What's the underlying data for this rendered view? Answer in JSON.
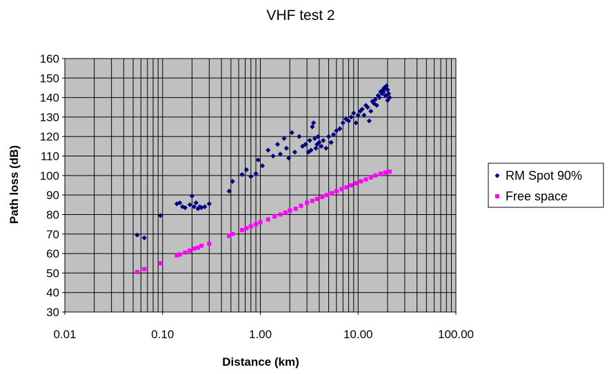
{
  "chart_data": {
    "type": "scatter",
    "title": "VHF test 2",
    "xlabel": "Distance (km)",
    "ylabel": "Path loss (dB)",
    "x_scale": "log",
    "xlim": [
      0.01,
      100
    ],
    "ylim": [
      30,
      160
    ],
    "x_tick_values": [
      0.01,
      0.1,
      1,
      10,
      100
    ],
    "x_tick_labels": [
      "0.01",
      "0.10",
      "1.00",
      "10.00",
      "100.00"
    ],
    "y_ticks": [
      30,
      40,
      50,
      60,
      70,
      80,
      90,
      100,
      110,
      120,
      130,
      140,
      150,
      160
    ],
    "grid": true,
    "plot_background": "#c0c0c0",
    "legend_position": "right",
    "series": [
      {
        "name": "RM Spot 90%",
        "color": "#000080",
        "marker": "diamond",
        "points": [
          [
            0.055,
            69.5
          ],
          [
            0.065,
            68
          ],
          [
            0.095,
            79.5
          ],
          [
            0.14,
            85.5
          ],
          [
            0.15,
            86
          ],
          [
            0.16,
            84
          ],
          [
            0.17,
            83.5
          ],
          [
            0.19,
            85
          ],
          [
            0.2,
            89.5
          ],
          [
            0.21,
            84
          ],
          [
            0.22,
            86
          ],
          [
            0.23,
            83
          ],
          [
            0.24,
            84
          ],
          [
            0.25,
            83.5
          ],
          [
            0.27,
            84
          ],
          [
            0.3,
            85.5
          ],
          [
            0.48,
            92
          ],
          [
            0.52,
            97
          ],
          [
            0.65,
            100.5
          ],
          [
            0.72,
            103
          ],
          [
            0.8,
            99.5
          ],
          [
            0.9,
            101
          ],
          [
            0.95,
            108
          ],
          [
            1.05,
            105
          ],
          [
            1.2,
            113
          ],
          [
            1.35,
            110
          ],
          [
            1.5,
            116
          ],
          [
            1.6,
            111
          ],
          [
            1.75,
            119
          ],
          [
            1.85,
            114
          ],
          [
            1.95,
            109
          ],
          [
            2.1,
            122
          ],
          [
            2.25,
            112
          ],
          [
            2.5,
            120
          ],
          [
            2.7,
            115
          ],
          [
            2.9,
            116
          ],
          [
            3.1,
            112
          ],
          [
            3.2,
            118
          ],
          [
            3.3,
            113
          ],
          [
            3.4,
            125
          ],
          [
            3.5,
            127
          ],
          [
            3.6,
            119
          ],
          [
            3.7,
            114
          ],
          [
            3.8,
            116
          ],
          [
            3.9,
            120
          ],
          [
            4.0,
            117
          ],
          [
            4.2,
            115
          ],
          [
            4.4,
            118
          ],
          [
            4.7,
            114
          ],
          [
            5.0,
            120
          ],
          [
            5.3,
            117
          ],
          [
            5.6,
            121
          ],
          [
            6.0,
            123
          ],
          [
            6.5,
            124
          ],
          [
            7.0,
            127
          ],
          [
            7.5,
            129
          ],
          [
            8.0,
            128
          ],
          [
            8.5,
            130
          ],
          [
            9.0,
            132
          ],
          [
            9.5,
            127
          ],
          [
            10.0,
            131
          ],
          [
            10.5,
            133
          ],
          [
            11.0,
            134
          ],
          [
            11.5,
            131
          ],
          [
            12.0,
            136
          ],
          [
            12.5,
            135
          ],
          [
            13.0,
            128
          ],
          [
            13.5,
            133
          ],
          [
            14.0,
            138
          ],
          [
            14.5,
            137
          ],
          [
            15.0,
            139
          ],
          [
            15.5,
            136
          ],
          [
            16.0,
            141
          ],
          [
            16.5,
            140
          ],
          [
            17.0,
            143
          ],
          [
            17.5,
            142
          ],
          [
            18.0,
            144
          ],
          [
            18.5,
            145
          ],
          [
            19.0,
            145
          ],
          [
            19.5,
            146
          ],
          [
            20.0,
            144
          ],
          [
            20.5,
            142
          ],
          [
            21.0,
            140
          ],
          [
            20.0,
            138.5
          ],
          [
            19.0,
            141
          ],
          [
            18.2,
            143
          ]
        ]
      },
      {
        "name": "Free space",
        "color": "#ff00ff",
        "marker": "square",
        "points": [
          [
            0.055,
            50.5
          ],
          [
            0.065,
            52
          ],
          [
            0.095,
            55
          ],
          [
            0.14,
            59
          ],
          [
            0.15,
            59.5
          ],
          [
            0.17,
            60.5
          ],
          [
            0.19,
            61.5
          ],
          [
            0.21,
            62.5
          ],
          [
            0.23,
            63
          ],
          [
            0.25,
            64
          ],
          [
            0.3,
            65
          ],
          [
            0.48,
            69
          ],
          [
            0.52,
            70
          ],
          [
            0.65,
            72
          ],
          [
            0.72,
            73
          ],
          [
            0.8,
            74
          ],
          [
            0.9,
            75
          ],
          [
            1.0,
            76
          ],
          [
            1.2,
            77.5
          ],
          [
            1.4,
            79
          ],
          [
            1.6,
            80
          ],
          [
            1.8,
            81
          ],
          [
            2.0,
            82
          ],
          [
            2.3,
            83
          ],
          [
            2.6,
            84.5
          ],
          [
            3.0,
            86
          ],
          [
            3.4,
            87
          ],
          [
            3.8,
            88
          ],
          [
            4.3,
            89
          ],
          [
            4.8,
            90
          ],
          [
            5.4,
            91
          ],
          [
            6.0,
            92
          ],
          [
            6.8,
            93
          ],
          [
            7.6,
            94
          ],
          [
            8.5,
            95
          ],
          [
            9.5,
            96
          ],
          [
            10.7,
            97
          ],
          [
            12.0,
            98
          ],
          [
            13.5,
            99
          ],
          [
            15.0,
            100
          ],
          [
            17.0,
            101
          ],
          [
            19.0,
            101.5
          ],
          [
            21.0,
            102
          ]
        ]
      }
    ]
  }
}
